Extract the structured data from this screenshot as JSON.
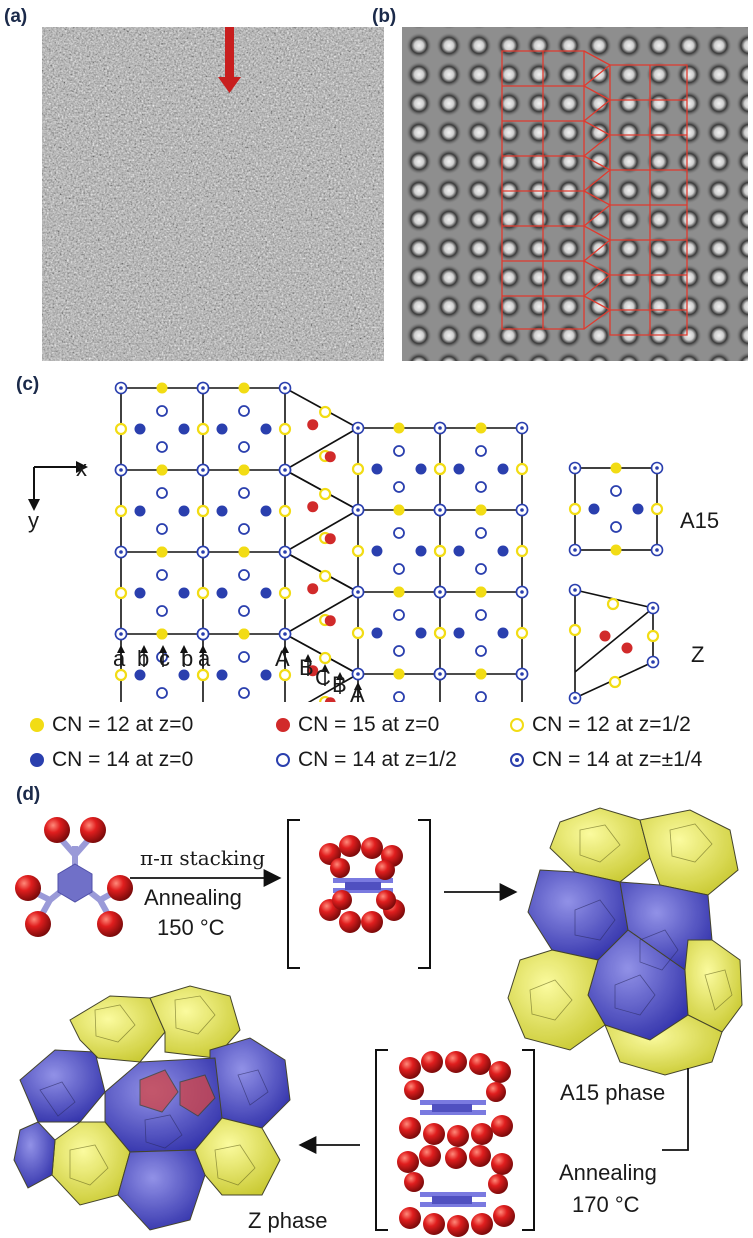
{
  "panels": {
    "a": "(a)",
    "b": "(b)",
    "c": "(c)",
    "d": "(d)"
  },
  "axes": {
    "x": "x",
    "y": "y"
  },
  "stacking_labels": {
    "left": [
      "a",
      "b",
      "c",
      "b",
      "a"
    ],
    "right": [
      "A",
      "B",
      "C",
      "B",
      "A"
    ]
  },
  "unit_cells": {
    "a15": "A15",
    "z": "Z"
  },
  "legend": [
    {
      "symbol": "yellow-filled",
      "text": "CN = 12 at z=0"
    },
    {
      "symbol": "red-filled",
      "text": "CN = 15 at z=0"
    },
    {
      "symbol": "yellow-open",
      "text": "CN = 12 at z=1/2"
    },
    {
      "symbol": "blue-filled",
      "text": "CN = 14 at z=0"
    },
    {
      "symbol": "blue-open",
      "text": "CN = 14 at z=1/2"
    },
    {
      "symbol": "blue-dotted",
      "text": "CN = 14 at z=±1/4"
    }
  ],
  "scheme": {
    "step1_top": "π-π stacking",
    "step1_bottom_1": "Annealing",
    "step1_bottom_2": "150 °C",
    "a15_phase": "A15 phase",
    "step2_1": "Annealing",
    "step2_2": "170 °C",
    "z_phase": "Z phase"
  },
  "colors": {
    "yellow": "#f2dc14",
    "blue": "#2a3fae",
    "red": "#d12a2a",
    "overlay_red": "#e03a2e",
    "arrow_red": "#c81e1e"
  }
}
